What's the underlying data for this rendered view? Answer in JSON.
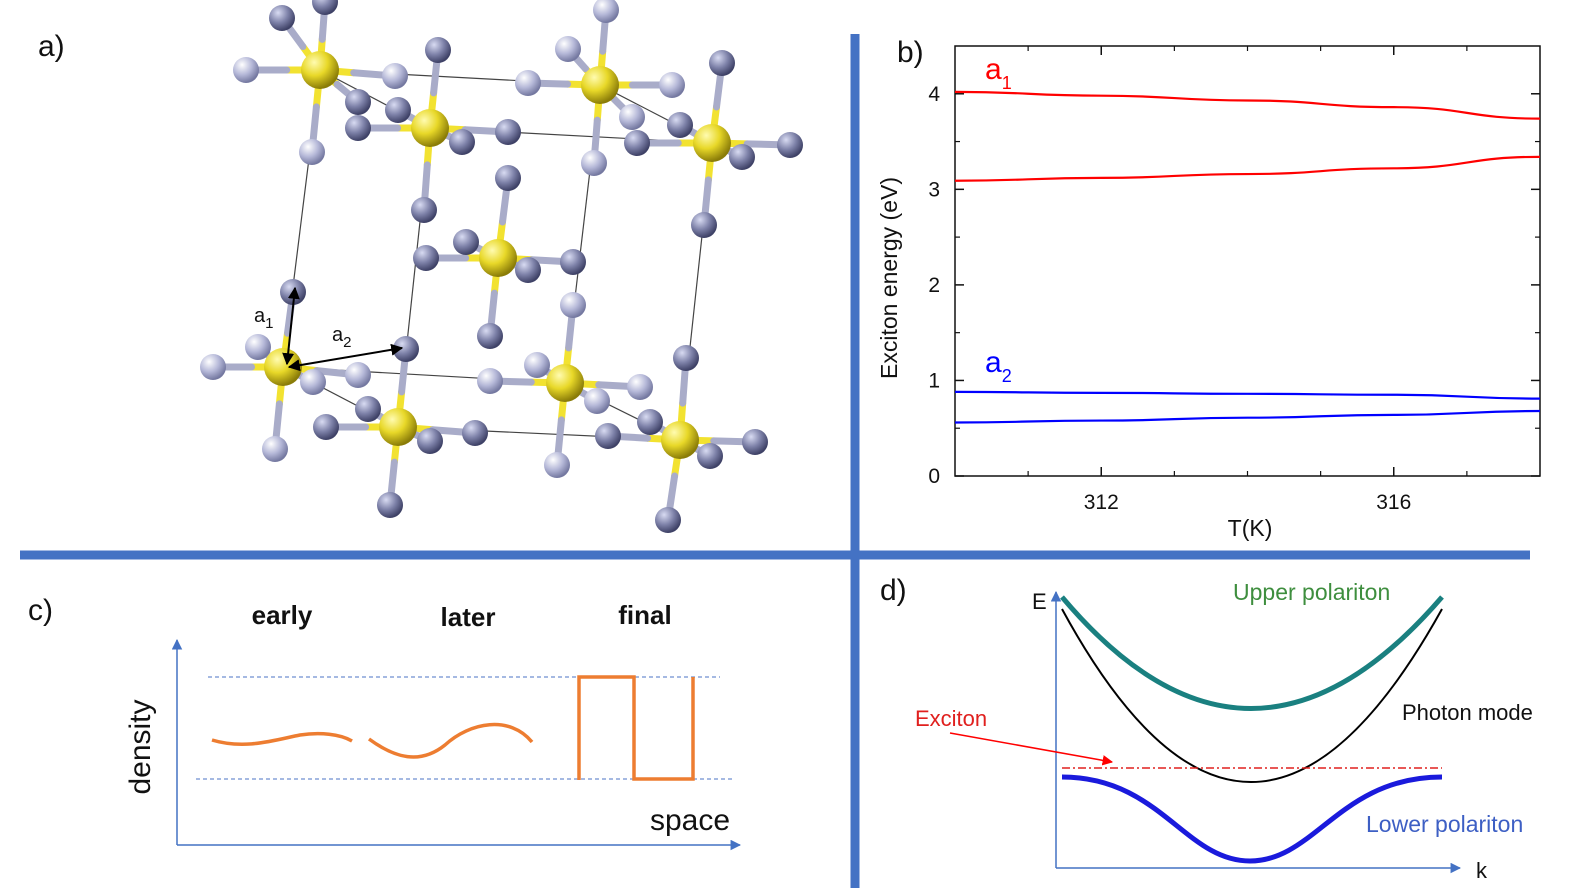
{
  "panels": {
    "a": {
      "label": "a)",
      "vec1": "a",
      "vec1_sub": "1",
      "vec2": "a",
      "vec2_sub": "2"
    },
    "b": {
      "label": "b)"
    },
    "c": {
      "label": "c)",
      "stage_labels": [
        "early",
        "later",
        "final"
      ],
      "ylabel": "density",
      "xlabel": "space"
    },
    "d": {
      "label": "d)",
      "e_label": "E",
      "k_label": "k",
      "upper": "Upper polariton",
      "photon": "Photon mode",
      "exciton": "Exciton",
      "lower": "Lower polariton"
    }
  },
  "colors": {
    "divider": "#4472c4",
    "a1": "#ff0000",
    "a2": "#0000ff",
    "density_curve": "#ed7d31",
    "upper_polariton": "#1a8080",
    "lower_polariton": "#1a1adc",
    "upper_text": "#3e8e3e",
    "lower_text": "#3d5fc4",
    "exciton": "#e0201e",
    "atom_metal": "#d8c81a",
    "atom_ligand": "#8c8fb6"
  },
  "chart_data": {
    "type": "line",
    "xlabel": "T(K)",
    "ylabel": "Exciton energy (eV)",
    "xlim": [
      310,
      318
    ],
    "ylim": [
      0,
      4.5
    ],
    "xticks": [
      312,
      316
    ],
    "yticks": [
      0,
      1,
      2,
      3,
      4
    ],
    "series": [
      {
        "name": "a",
        "name_sub": "1",
        "color": "#ff0000",
        "x": [
          310,
          312,
          314,
          316,
          318
        ],
        "values": [
          4.02,
          3.98,
          3.93,
          3.86,
          3.74
        ]
      },
      {
        "name": "a",
        "name_sub": "1",
        "color": "#ff0000",
        "x": [
          310,
          312,
          314,
          316,
          318
        ],
        "values": [
          3.09,
          3.12,
          3.16,
          3.22,
          3.34
        ]
      },
      {
        "name": "a",
        "name_sub": "2",
        "color": "#0000ff",
        "x": [
          310,
          312,
          314,
          316,
          318
        ],
        "values": [
          0.88,
          0.87,
          0.86,
          0.85,
          0.81
        ]
      },
      {
        "name": "a",
        "name_sub": "2",
        "color": "#0000ff",
        "x": [
          310,
          312,
          314,
          316,
          318
        ],
        "values": [
          0.56,
          0.58,
          0.61,
          0.64,
          0.68
        ]
      }
    ]
  }
}
